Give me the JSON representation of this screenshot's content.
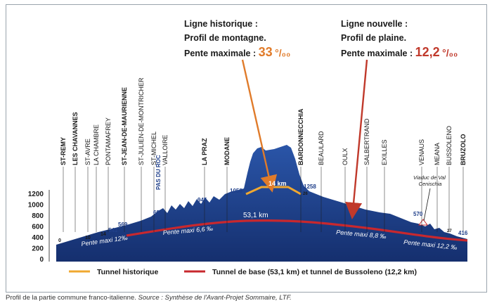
{
  "figure": {
    "annotations": {
      "historic": {
        "line1": "Ligne historique :",
        "line2": "Profil de montagne.",
        "line3": "Pente maximale :",
        "value": "33",
        "unit": "°/₀₀"
      },
      "new": {
        "line1": "Ligne nouvelle :",
        "line2": "Profil de plaine.",
        "line3": "Pente maximale :",
        "value": "12,2",
        "unit": "°/₀₀"
      }
    },
    "stations": [
      "ST-REMY",
      "LES CHAVANNES",
      "ST-AVRE",
      "LA CHAMBRE",
      "PONTAMAFREY",
      "ST-JEAN-DE-MAURIENNE",
      "ST-JULIEN-DE-MONTRICHER",
      "ST-MICHEL",
      "VALLOIRE",
      "PAS DU ROC",
      "LA PRAZ",
      "MODANE",
      "BARDONNECCHIA",
      "BEAULARD",
      "OULX",
      "SALBERTRAND",
      "EXILLES",
      "VENAUS",
      "MEANA",
      "BUSSOLENO",
      "BRUZOLO"
    ],
    "elevations": [
      "0",
      "10",
      "14",
      "541",
      "569",
      "691",
      "945",
      "1058",
      "1258",
      "570",
      "416",
      "26",
      "27"
    ],
    "tunnel_labels": {
      "historic_length": "14 km",
      "base_length": "53,1 km",
      "viaduct": "Viaduc de Val Cenischia"
    },
    "slopes": [
      "Pente maxi 12‰",
      "Pente maxi 6,6 ‰",
      "Pente maxi 8,8 ‰",
      "Pente maxi 12,2 ‰"
    ],
    "legend": {
      "historic": "Tunnel historique",
      "base": "Tunnel de base (53,1 km) et tunnel de Bussoleno (12,2 km)"
    },
    "colors": {
      "terrain": "#1f3f8a",
      "historic_tunnel": "#f0a830",
      "base_tunnel": "#c8282e",
      "arrow_historic": "#e07b2a",
      "arrow_new": "#c0392b"
    }
  },
  "chart_data": {
    "type": "area",
    "y_ticks": [
      "0",
      "200",
      "400",
      "600",
      "800",
      "1000",
      "1200"
    ],
    "ylim": [
      0,
      1300
    ]
  },
  "caption": {
    "text": "Profil de la partie commune franco-italienne. ",
    "source": "Source : Synthèse de l'Avant-Projet Sommaire, LTF."
  }
}
